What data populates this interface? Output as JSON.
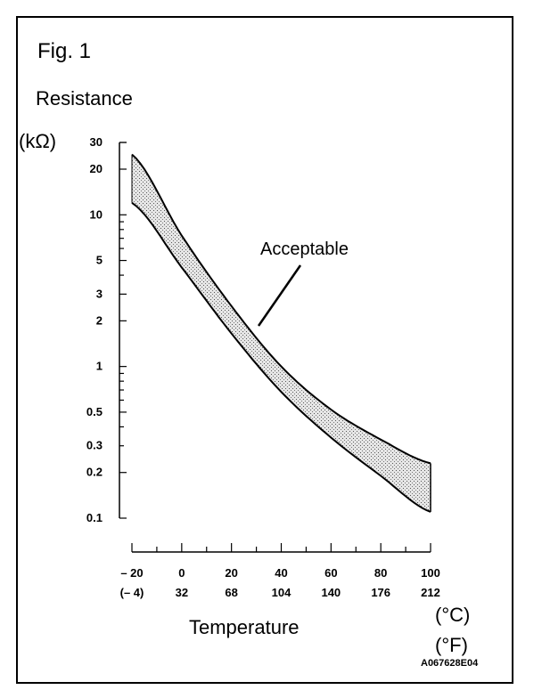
{
  "figure_label": "Fig. 1",
  "reference_code": "A067628E04",
  "chart_data": {
    "type": "area",
    "title": "",
    "ylabel": "Resistance",
    "y_unit": "(kΩ)",
    "xlabel": "Temperature",
    "x_units": [
      "(°C)",
      "(°F)"
    ],
    "y_scale": "log",
    "ylim": [
      0.1,
      30
    ],
    "y_ticks": [
      30,
      20,
      10,
      5,
      3,
      2,
      1,
      0.5,
      0.3,
      0.2,
      0.1
    ],
    "y_tick_labels": [
      "30",
      "20",
      "10",
      "5",
      "3",
      "2",
      "1",
      "0.5",
      "0.3",
      "0.2",
      "0.1"
    ],
    "xlim": [
      -20,
      100
    ],
    "x_ticks": [
      -20,
      0,
      20,
      40,
      60,
      80,
      100
    ],
    "x_tick_labels_c": [
      "– 20",
      "0",
      "20",
      "40",
      "60",
      "80",
      "100"
    ],
    "x_tick_labels_f": [
      "(– 4)",
      "32",
      "68",
      "104",
      "140",
      "176",
      "212"
    ],
    "x": [
      -20,
      0,
      20,
      40,
      60,
      80,
      100
    ],
    "series": [
      {
        "values": [
          25,
          7.3,
          2.5,
          1.0,
          0.52,
          0.33,
          0.23
        ]
      },
      {
        "values": [
          12,
          4.5,
          1.65,
          0.68,
          0.34,
          0.19,
          0.11
        ]
      }
    ],
    "annotation": "Acceptable",
    "grid": false,
    "legend": "none"
  }
}
